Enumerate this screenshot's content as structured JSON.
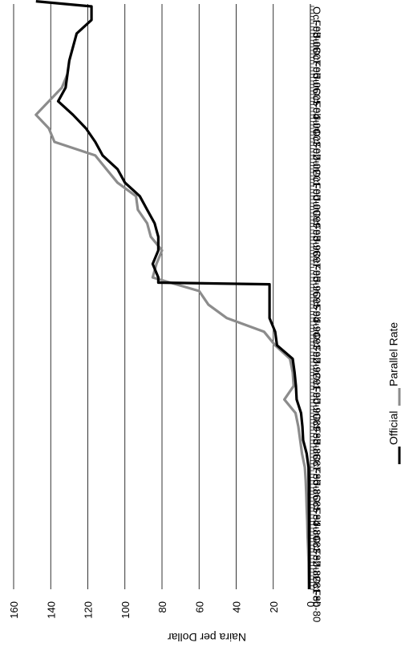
{
  "chart_data": {
    "type": "line",
    "orientation": "rotated-90-clockwise",
    "ylabel": "Naira per Dollar",
    "xlabel": "",
    "ylim": [
      0,
      160
    ],
    "y_ticks": [
      "0",
      "20",
      "40",
      "60",
      "80",
      "100",
      "120",
      "140",
      "160"
    ],
    "x_range": [
      "Feb-80",
      "Jun-08"
    ],
    "x_tick_labels": [
      "Feb-80",
      "Oct-80",
      "Jun-81",
      "Feb-82",
      "Oct-82",
      "Jun-83",
      "Feb-84",
      "Oct-84",
      "Jun-85",
      "Feb-86",
      "Oct-86",
      "Jun-87",
      "Feb-88",
      "Oct-88",
      "Jun-89",
      "Feb-90",
      "Oct-90",
      "Jun-91",
      "Feb-92",
      "Oct-92",
      "Jun-93",
      "Feb-94",
      "Oct-94",
      "Jun-95",
      "Feb-96",
      "Oct-96",
      "Jun-97",
      "Feb-98",
      "Oct-98",
      "Jun-99",
      "Feb-00",
      "Oct-00",
      "Jun-01",
      "Feb-02",
      "Oct-02",
      "Jun-03",
      "Feb-04",
      "Oct-04",
      "Jun-05",
      "Feb-06",
      "Oct-06",
      "Jun-07",
      "Feb-08",
      "Oct-08"
    ],
    "grid": true,
    "legend_position": "bottom",
    "series": [
      {
        "name": "Official",
        "color": "#000000",
        "points": [
          [
            "Feb-80",
            0.55
          ],
          [
            "Oct-80",
            0.6
          ],
          [
            "Jun-81",
            0.62
          ],
          [
            "Feb-82",
            0.67
          ],
          [
            "Oct-82",
            0.72
          ],
          [
            "Jun-83",
            0.72
          ],
          [
            "Feb-84",
            0.77
          ],
          [
            "Oct-84",
            0.8
          ],
          [
            "Jun-85",
            0.9
          ],
          [
            "Feb-86",
            1.0
          ],
          [
            "Oct-86",
            2.0
          ],
          [
            "Jun-87",
            3.9
          ],
          [
            "Feb-88",
            4.3
          ],
          [
            "Oct-88",
            5.0
          ],
          [
            "Jun-89",
            7.4
          ],
          [
            "Feb-90",
            7.8
          ],
          [
            "Oct-90",
            8.5
          ],
          [
            "Jun-91",
            9.5
          ],
          [
            "Feb-92",
            18.0
          ],
          [
            "Oct-92",
            19.0
          ],
          [
            "Jun-93",
            22.0
          ],
          [
            "Feb-94",
            22.0
          ],
          [
            "Oct-94",
            22.0
          ],
          [
            "Feb-95",
            22.0
          ],
          [
            "Mar-95",
            82.0
          ],
          [
            "Jun-95",
            82.0
          ],
          [
            "Feb-96",
            85.0
          ],
          [
            "Oct-96",
            82.0
          ],
          [
            "Jun-97",
            82.0
          ],
          [
            "Feb-98",
            84.0
          ],
          [
            "Oct-98",
            88.0
          ],
          [
            "Jun-99",
            92.0
          ],
          [
            "Feb-00",
            100.0
          ],
          [
            "Oct-00",
            104.0
          ],
          [
            "Jun-01",
            112.0
          ],
          [
            "Feb-02",
            116.0
          ],
          [
            "Oct-02",
            121.0
          ],
          [
            "Jun-03",
            128.0
          ],
          [
            "Feb-04",
            136.0
          ],
          [
            "Oct-04",
            132.0
          ],
          [
            "Jun-05",
            131.0
          ],
          [
            "Feb-06",
            130.0
          ],
          [
            "Oct-06",
            128.0
          ],
          [
            "Jun-07",
            126.0
          ],
          [
            "Feb-08",
            118.0
          ],
          [
            "Oct-08",
            118.0
          ],
          [
            "Jan-09",
            148.0
          ]
        ]
      },
      {
        "name": "Parallel Rate",
        "color": "#8c8c8c",
        "points": [
          [
            "Feb-80",
            0.8
          ],
          [
            "Oct-80",
            0.9
          ],
          [
            "Jun-81",
            1.0
          ],
          [
            "Feb-82",
            1.2
          ],
          [
            "Oct-82",
            1.5
          ],
          [
            "Jun-83",
            1.7
          ],
          [
            "Feb-84",
            2.0
          ],
          [
            "Oct-84",
            2.2
          ],
          [
            "Jun-85",
            2.5
          ],
          [
            "Feb-86",
            3.0
          ],
          [
            "Oct-86",
            4.5
          ],
          [
            "Jun-87",
            5.5
          ],
          [
            "Feb-88",
            6.5
          ],
          [
            "Oct-88",
            8.0
          ],
          [
            "Jun-89",
            14.0
          ],
          [
            "Feb-90",
            9.0
          ],
          [
            "Oct-90",
            9.5
          ],
          [
            "Jun-91",
            11.0
          ],
          [
            "Feb-92",
            19.0
          ],
          [
            "Oct-92",
            25.0
          ],
          [
            "Jun-93",
            45.0
          ],
          [
            "Feb-94",
            55.0
          ],
          [
            "Oct-94",
            60.0
          ],
          [
            "Jun-95",
            85.0
          ],
          [
            "Feb-96",
            83.0
          ],
          [
            "Oct-96",
            80.0
          ],
          [
            "Jun-97",
            86.0
          ],
          [
            "Feb-98",
            88.0
          ],
          [
            "Oct-98",
            93.0
          ],
          [
            "Jun-99",
            94.0
          ],
          [
            "Feb-00",
            104.0
          ],
          [
            "Oct-00",
            110.0
          ],
          [
            "Jun-01",
            116.0
          ],
          [
            "Feb-02",
            138.0
          ],
          [
            "Oct-02",
            141.0
          ],
          [
            "Jun-03",
            148.0
          ],
          [
            "Feb-04",
            141.0
          ],
          [
            "Oct-04",
            134.0
          ],
          [
            "Jun-05",
            131.0
          ]
        ]
      }
    ]
  }
}
